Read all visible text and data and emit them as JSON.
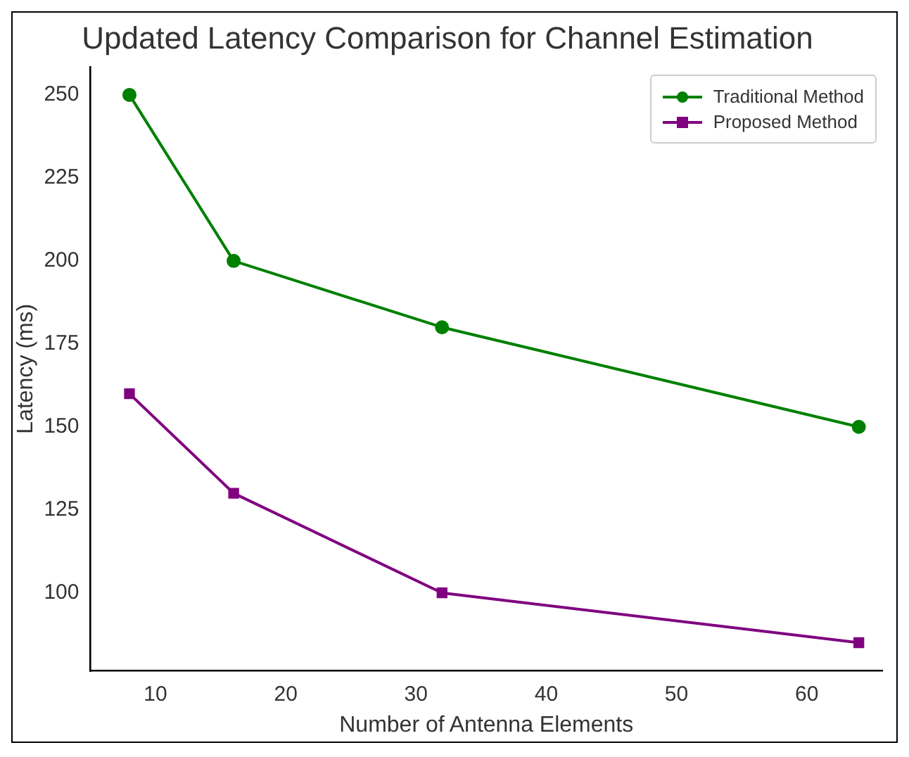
{
  "chart_data": {
    "type": "line",
    "title": "Updated Latency Comparison for Channel Estimation",
    "xlabel": "Number of Antenna Elements",
    "ylabel": "Latency (ms)",
    "x": [
      8,
      16,
      32,
      64
    ],
    "series": [
      {
        "name": "Traditional Method",
        "color": "#008000",
        "marker": "circle",
        "values": [
          250,
          200,
          180,
          150
        ]
      },
      {
        "name": "Proposed Method",
        "color": "#800080",
        "marker": "square",
        "values": [
          160,
          130,
          100,
          85
        ]
      }
    ],
    "xlim": [
      5,
      65.8
    ],
    "xticks": [
      10,
      20,
      30,
      40,
      50,
      60
    ],
    "ylim": [
      76.5,
      258.5
    ],
    "yticks": [
      100,
      125,
      150,
      175,
      200,
      225,
      250
    ],
    "grid": false,
    "legend": "top right",
    "line_style": "solid"
  }
}
